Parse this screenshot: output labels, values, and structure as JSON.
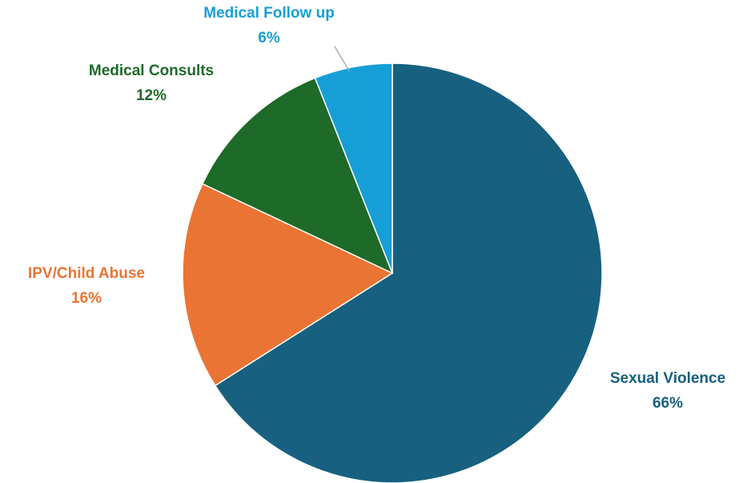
{
  "chart_data": {
    "type": "pie",
    "title": "",
    "slices": [
      {
        "label": "Sexual Violence",
        "value": 66,
        "display": "66%",
        "color": "#17607f"
      },
      {
        "label": "IPV/Child Abuse",
        "value": 16,
        "display": "16%",
        "color": "#ea7434"
      },
      {
        "label": "Medical Consults",
        "value": 12,
        "display": "12%",
        "color": "#1e6a29"
      },
      {
        "label": "Medical Follow up",
        "value": 6,
        "display": "6%",
        "color": "#159fd6"
      }
    ],
    "legend": "none",
    "data_labels": "outside"
  }
}
